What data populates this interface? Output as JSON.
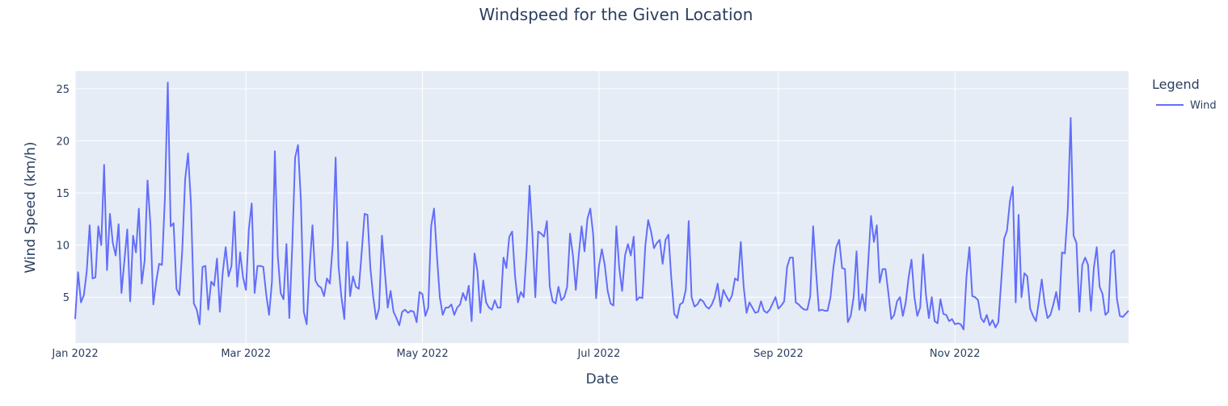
{
  "chart_data": {
    "type": "line",
    "title": "Windspeed for the Given Location",
    "xlabel": "Date",
    "ylabel": "Wind Speed (km/h)",
    "x_start": "2022-01-01",
    "x_end": "2022-12-31",
    "xlim": [
      "2022-01-01",
      "2022-12-31"
    ],
    "ylim": [
      0.6,
      26.7
    ],
    "x_ticks": [
      {
        "date": "2022-01-01",
        "label": "Jan 2022"
      },
      {
        "date": "2022-03-01",
        "label": "Mar 2022"
      },
      {
        "date": "2022-05-01",
        "label": "May 2022"
      },
      {
        "date": "2022-07-01",
        "label": "Jul 2022"
      },
      {
        "date": "2022-09-01",
        "label": "Sep 2022"
      },
      {
        "date": "2022-11-01",
        "label": "Nov 2022"
      }
    ],
    "y_ticks": [
      5,
      10,
      15,
      20,
      25
    ],
    "grid": true,
    "legend": {
      "title": "Legend",
      "position": "top-right"
    },
    "series": [
      {
        "name": "Wind",
        "color": "#636efa",
        "values": [
          2.9,
          7.4,
          4.5,
          5.2,
          7.5,
          11.9,
          6.8,
          6.9,
          11.8,
          10.0,
          17.7,
          7.6,
          13.0,
          10.2,
          9.0,
          12.0,
          5.4,
          8.5,
          11.5,
          4.6,
          10.9,
          9.3,
          13.5,
          6.3,
          8.5,
          16.2,
          12.0,
          4.3,
          6.5,
          8.2,
          8.1,
          14.5,
          25.6,
          11.8,
          12.1,
          5.8,
          5.2,
          9.5,
          16.3,
          18.8,
          14.0,
          4.4,
          3.8,
          2.4,
          7.9,
          8.0,
          3.8,
          6.5,
          6.1,
          8.7,
          3.6,
          7.4,
          9.8,
          7.0,
          8.0,
          13.2,
          6.0,
          9.3,
          6.9,
          5.7,
          11.5,
          14.0,
          5.4,
          8.0,
          8.0,
          7.9,
          5.3,
          3.3,
          6.5,
          19.0,
          9.0,
          5.4,
          4.8,
          10.1,
          3.0,
          9.8,
          18.4,
          19.6,
          14.3,
          3.6,
          2.4,
          7.8,
          11.9,
          6.6,
          6.1,
          5.9,
          5.1,
          6.8,
          6.3,
          10.0,
          18.4,
          8.0,
          5.0,
          2.9,
          10.3,
          5.1,
          7.0,
          6.0,
          5.8,
          9.3,
          13.0,
          12.9,
          7.8,
          5.0,
          2.9,
          3.9,
          10.9,
          7.5,
          4.0,
          5.6,
          3.6,
          3.0,
          2.3,
          3.6,
          3.8,
          3.5,
          3.7,
          3.6,
          2.6,
          5.5,
          5.3,
          3.2,
          4.0,
          11.8,
          13.5,
          9.0,
          5.0,
          3.3,
          4.0,
          4.0,
          4.3,
          3.3,
          4.0,
          4.3,
          5.4,
          4.7,
          6.1,
          2.7,
          9.2,
          7.5,
          3.5,
          6.6,
          4.5,
          4.0,
          3.8,
          4.7,
          4.0,
          4.0,
          8.8,
          7.8,
          10.8,
          11.3,
          7.0,
          4.5,
          5.5,
          5.0,
          9.5,
          15.7,
          11.0,
          5.0,
          11.3,
          11.1,
          10.8,
          12.3,
          6.0,
          4.6,
          4.4,
          6.0,
          4.7,
          5.0,
          6.0,
          11.1,
          9.0,
          5.7,
          9.0,
          11.8,
          9.4,
          12.5,
          13.5,
          11.0,
          4.9,
          8.0,
          9.6,
          8.1,
          5.6,
          4.4,
          4.2,
          11.8,
          7.8,
          5.6,
          9.0,
          10.1,
          9.0,
          10.8,
          4.7,
          5.0,
          4.9,
          9.9,
          12.4,
          11.3,
          9.7,
          10.2,
          10.5,
          8.2,
          10.5,
          11.0,
          6.8,
          3.4,
          3.0,
          4.3,
          4.5,
          5.7,
          12.3,
          5.0,
          4.1,
          4.3,
          4.8,
          4.6,
          4.1,
          3.9,
          4.3,
          5.0,
          6.3,
          4.1,
          5.7,
          5.1,
          4.6,
          5.2,
          6.8,
          6.6,
          10.3,
          6.0,
          3.5,
          4.5,
          4.0,
          3.5,
          3.6,
          4.6,
          3.7,
          3.5,
          3.8,
          4.4,
          5.0,
          3.9,
          4.2,
          4.6,
          7.9,
          8.8,
          8.8,
          4.5,
          4.3,
          4.0,
          3.8,
          3.8,
          5.1,
          11.8,
          7.5,
          3.7,
          3.8,
          3.7,
          3.7,
          5.0,
          7.8,
          9.8,
          10.5,
          7.8,
          7.7,
          2.6,
          3.2,
          5.0,
          9.4,
          3.8,
          5.3,
          3.7,
          8.2,
          12.8,
          10.3,
          11.9,
          6.4,
          7.7,
          7.7,
          5.4,
          2.9,
          3.3,
          4.6,
          5.0,
          3.2,
          4.5,
          6.9,
          8.6,
          5.0,
          3.2,
          4.0,
          9.1,
          5.2,
          3.0,
          5.0,
          2.7,
          2.5,
          4.8,
          3.4,
          3.3,
          2.7,
          2.9,
          2.4,
          2.5,
          2.4,
          1.9,
          7.0,
          9.8,
          5.1,
          5.0,
          4.7,
          3.0,
          2.6,
          3.3,
          2.3,
          2.8,
          2.1,
          2.6,
          6.5,
          10.6,
          11.4,
          14.2,
          15.6,
          4.5,
          12.9,
          5.0,
          7.3,
          7.0,
          3.9,
          3.2,
          2.7,
          4.6,
          6.7,
          4.4,
          3.0,
          3.3,
          4.3,
          5.5,
          3.8,
          9.3,
          9.2,
          13.4,
          22.2,
          10.9,
          10.2,
          3.6,
          8.1,
          8.8,
          8.1,
          3.7,
          7.8,
          9.8,
          6.0,
          5.3,
          3.3,
          3.6,
          9.2,
          9.5,
          4.8,
          3.2,
          3.1,
          3.4,
          3.7
        ]
      }
    ]
  }
}
